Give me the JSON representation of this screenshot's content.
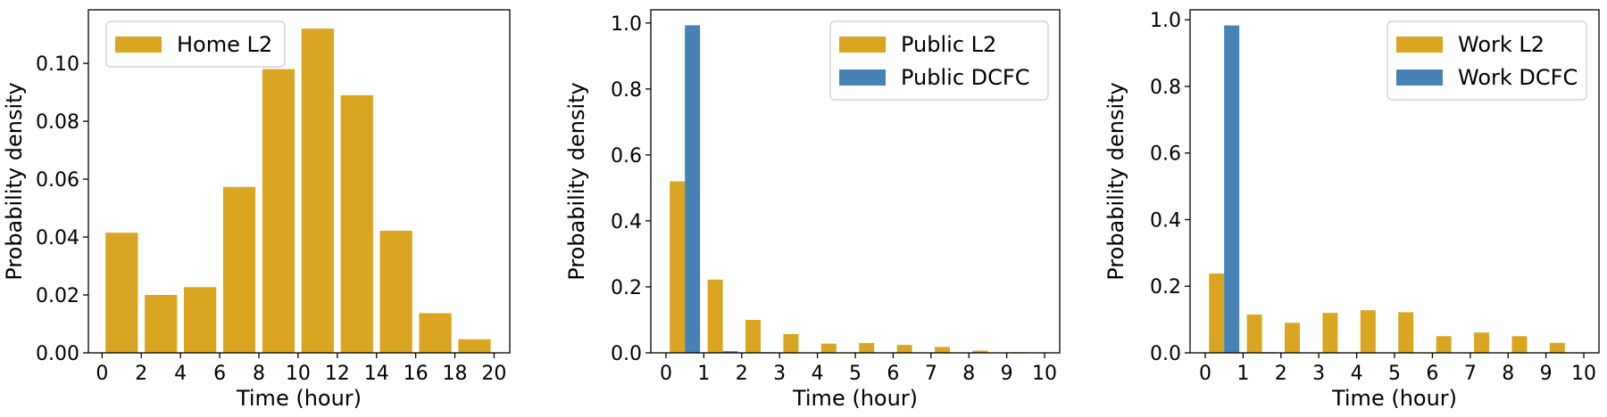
{
  "colors": {
    "l2": "#DAA520",
    "dcfc": "#4682B4"
  },
  "chart_data": [
    {
      "type": "bar",
      "xlabel": "Time (hour)",
      "ylabel": "Probability density",
      "xlim": [
        -0.7,
        20.8
      ],
      "ylim": [
        0,
        0.1185
      ],
      "xticks": [
        0,
        2,
        4,
        6,
        8,
        10,
        12,
        14,
        16,
        18,
        20
      ],
      "yticks": [
        0,
        0.02,
        0.04,
        0.06,
        0.08,
        0.1
      ],
      "ytick_labels": [
        "0.00",
        "0.02",
        "0.04",
        "0.06",
        "0.08",
        "0.10"
      ],
      "legend_position": "top-left",
      "bar_width": 1.65,
      "series": [
        {
          "name": "Home L2",
          "color": "#DAA520",
          "x": [
            1,
            3,
            5,
            7,
            9,
            11,
            13,
            15,
            17,
            19
          ],
          "values": [
            0.0415,
            0.02,
            0.0227,
            0.0573,
            0.098,
            0.112,
            0.089,
            0.0422,
            0.0137,
            0.0047
          ]
        }
      ]
    },
    {
      "type": "bar",
      "xlabel": "Time (hour)",
      "ylabel": "Probability density",
      "xlim": [
        -0.4,
        10.4
      ],
      "ylim": [
        0,
        1.04
      ],
      "xticks": [
        0,
        1,
        2,
        3,
        4,
        5,
        6,
        7,
        8,
        9,
        10
      ],
      "yticks": [
        0,
        0.2,
        0.4,
        0.6,
        0.8,
        1.0
      ],
      "ytick_labels": [
        "0.0",
        "0.2",
        "0.4",
        "0.6",
        "0.8",
        "1.0"
      ],
      "legend_position": "top-right",
      "bar_width": 0.4,
      "series": [
        {
          "name": "Public L2",
          "color": "#DAA520",
          "x": [
            0.3,
            1.3,
            2.3,
            3.3,
            4.3,
            5.3,
            6.3,
            7.3,
            8.3,
            9.3
          ],
          "values": [
            0.52,
            0.222,
            0.1,
            0.057,
            0.028,
            0.03,
            0.024,
            0.018,
            0.007,
            0.002
          ]
        },
        {
          "name": "Public DCFC",
          "color": "#4682B4",
          "x": [
            0.7,
            1.7,
            2.7,
            3.7,
            4.7,
            5.7,
            6.7,
            7.7,
            8.7,
            9.7
          ],
          "values": [
            0.993,
            0.005,
            0.002,
            0.001,
            0.001,
            0.001,
            0,
            0,
            0,
            0
          ]
        }
      ]
    },
    {
      "type": "bar",
      "xlabel": "Time (hour)",
      "ylabel": "Probability density",
      "xlim": [
        -0.4,
        10.4
      ],
      "ylim": [
        0,
        1.03
      ],
      "xticks": [
        0,
        1,
        2,
        3,
        4,
        5,
        6,
        7,
        8,
        9,
        10
      ],
      "yticks": [
        0,
        0.2,
        0.4,
        0.6,
        0.8,
        1.0
      ],
      "ytick_labels": [
        "0.0",
        "0.2",
        "0.4",
        "0.6",
        "0.8",
        "1.0"
      ],
      "legend_position": "top-right",
      "bar_width": 0.4,
      "series": [
        {
          "name": "Work L2",
          "color": "#DAA520",
          "x": [
            0.3,
            1.3,
            2.3,
            3.3,
            4.3,
            5.3,
            6.3,
            7.3,
            8.3,
            9.3
          ],
          "values": [
            0.238,
            0.115,
            0.09,
            0.12,
            0.128,
            0.122,
            0.05,
            0.061,
            0.05,
            0.03
          ]
        },
        {
          "name": "Work DCFC",
          "color": "#4682B4",
          "x": [
            0.7,
            1.7,
            2.7,
            3.7,
            4.7,
            5.7,
            6.7,
            7.7,
            8.7,
            9.7
          ],
          "values": [
            0.983,
            0.002,
            0.001,
            0.001,
            0.001,
            0.001,
            0,
            0,
            0,
            0
          ]
        }
      ]
    }
  ]
}
